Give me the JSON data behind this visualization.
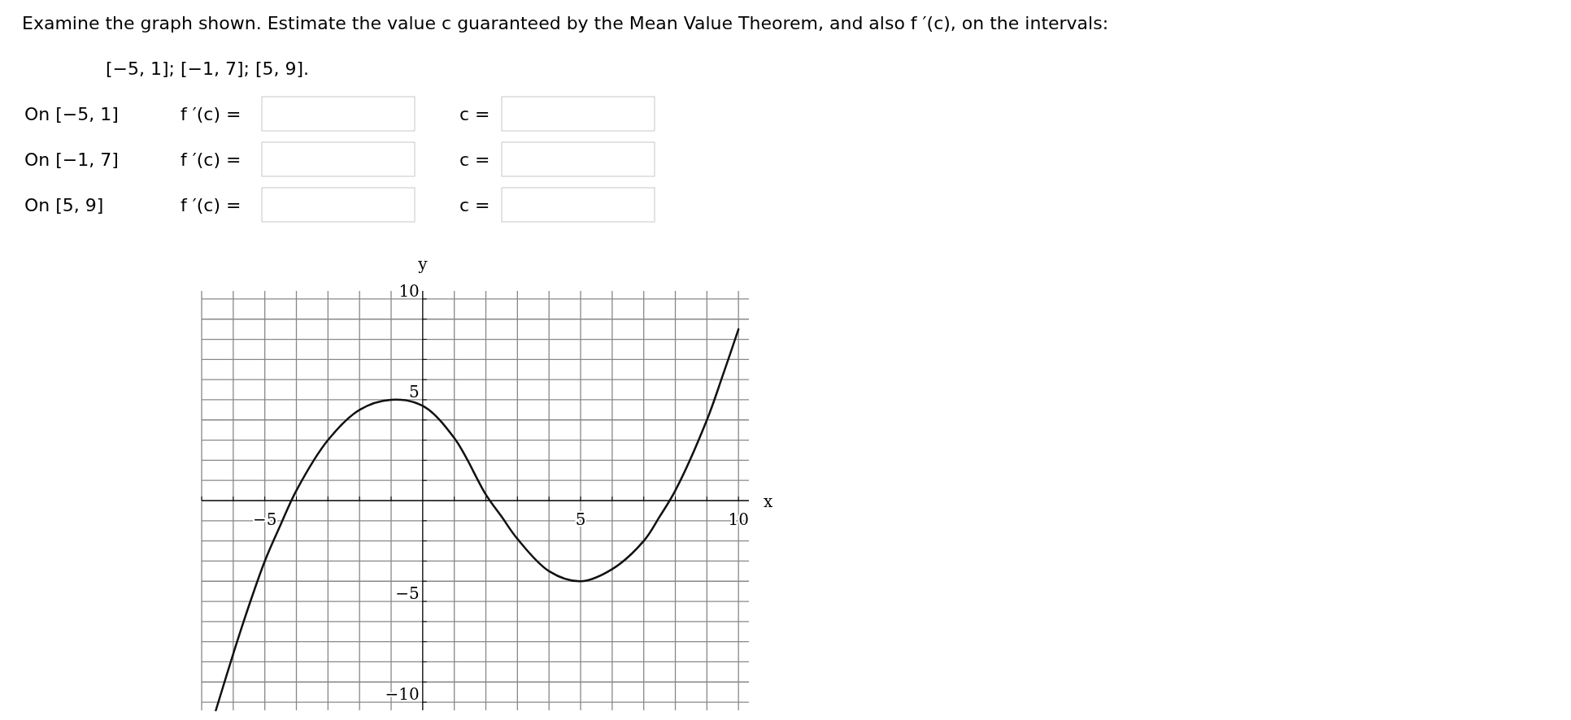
{
  "chart_data": {
    "type": "line",
    "title": "Examine the graph shown. Estimate the value c guaranteed by the Mean Value Theorem, and also f ′(c), on the intervals:",
    "subtitle": "[−5, 1]; [−1, 7]; [5, 9].",
    "annotations": [
      "On [−5, 1]",
      "f ′(c) =",
      "c =",
      "On [−1, 7]",
      "f ′(c) =",
      "c =",
      "On [5, 9]",
      "f ′(c) =",
      "c ="
    ],
    "xlabel": "x",
    "ylabel": "y",
    "x": [
      -6.55,
      -6,
      -5.5,
      -5,
      -4.5,
      -4,
      -3,
      -2,
      -1,
      0,
      1,
      2,
      2.5,
      3,
      4,
      5,
      6,
      7,
      7.5,
      8,
      9,
      9.5,
      10
    ],
    "series": [
      {
        "color": "#111111",
        "values": [
          -10.4,
          -7.6,
          -5.2,
          -3.0,
          -1.2,
          0.5,
          3.0,
          4.5,
          5.0,
          4.7,
          3.1,
          0.3,
          -0.8,
          -1.9,
          -3.5,
          -4.0,
          -3.4,
          -2.0,
          -0.8,
          0.5,
          4.0,
          6.2,
          8.5
        ]
      }
    ],
    "xlim": [
      -7,
      10.33
    ],
    "ylim": [
      -10.4,
      10.4
    ],
    "xticks": [
      {
        "value": -7,
        "label": null
      },
      {
        "value": -6,
        "label": null
      },
      {
        "value": -5,
        "label": "−5"
      },
      {
        "value": -4,
        "label": null
      },
      {
        "value": -3,
        "label": null
      },
      {
        "value": -2,
        "label": null
      },
      {
        "value": -1,
        "label": null
      },
      {
        "value": 1,
        "label": null
      },
      {
        "value": 2,
        "label": null
      },
      {
        "value": 3,
        "label": null
      },
      {
        "value": 4,
        "label": null
      },
      5,
      {
        "value": 6,
        "label": null
      },
      {
        "value": 7,
        "label": null
      },
      {
        "value": 8,
        "label": null
      },
      {
        "value": 9,
        "label": null
      },
      10
    ],
    "yticks": [
      {
        "value": -10,
        "label": "−10"
      },
      {
        "value": -9,
        "label": null
      },
      {
        "value": -8,
        "label": null
      },
      {
        "value": -7,
        "label": null
      },
      {
        "value": -6,
        "label": null
      },
      {
        "value": -5,
        "label": "−5"
      },
      {
        "value": -4,
        "label": null
      },
      {
        "value": -3,
        "label": null
      },
      {
        "value": -2,
        "label": null
      },
      {
        "value": -1,
        "label": null
      },
      {
        "value": 1,
        "label": null
      },
      {
        "value": 2,
        "label": null
      },
      {
        "value": 3,
        "label": null
      },
      {
        "value": 4,
        "label": null
      },
      5,
      {
        "value": 6,
        "label": null
      },
      {
        "value": 7,
        "label": null
      },
      {
        "value": 8,
        "label": null
      },
      {
        "value": 9,
        "label": null
      },
      10
    ],
    "grid": true,
    "marker": "none",
    "line_style": "solid"
  }
}
